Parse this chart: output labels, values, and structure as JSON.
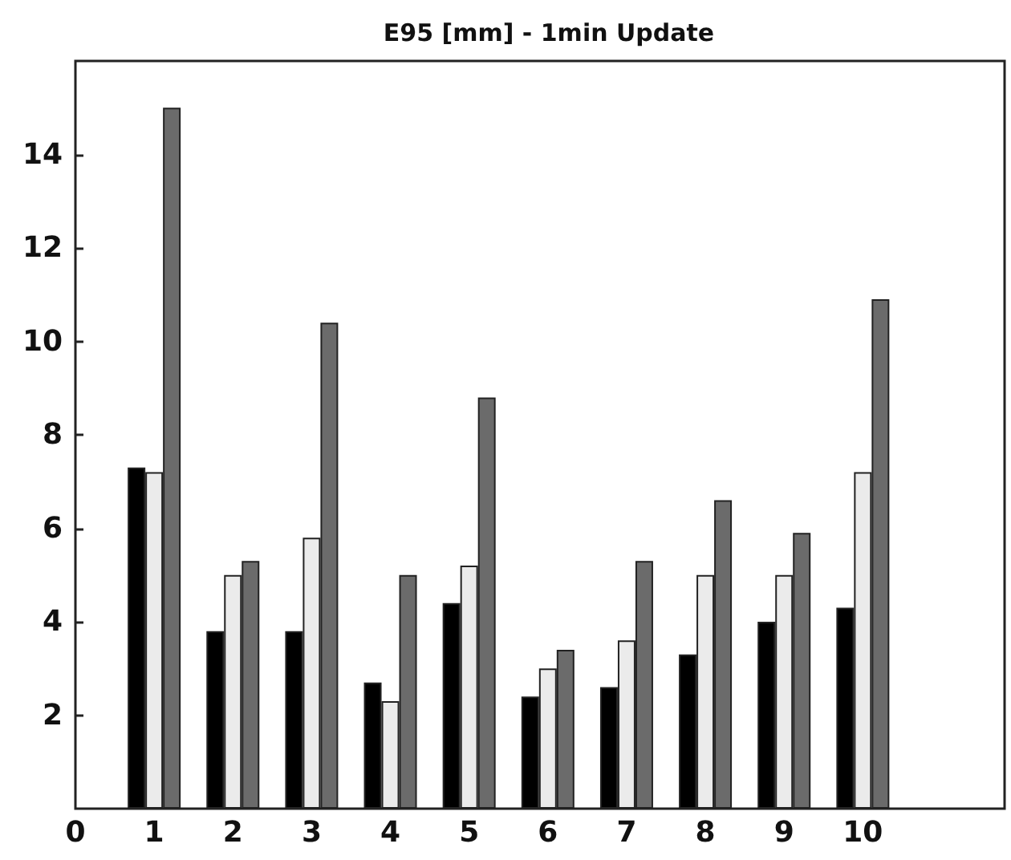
{
  "chart_data": {
    "type": "bar",
    "title": "E95 [mm] - 1min Update",
    "x": [
      1,
      2,
      3,
      4,
      5,
      6,
      7,
      8,
      9,
      10
    ],
    "series": [
      {
        "color": "#000000",
        "values": [
          7.3,
          3.8,
          3.8,
          2.7,
          4.4,
          2.4,
          2.6,
          3.3,
          4.0,
          4.3
        ]
      },
      {
        "color": "#ebebeb",
        "values": [
          7.2,
          5.0,
          5.8,
          2.3,
          5.2,
          3.0,
          3.6,
          5.0,
          5.0,
          7.2
        ]
      },
      {
        "color": "#6b6b6b",
        "values": [
          15.0,
          5.3,
          10.4,
          5.0,
          8.8,
          3.4,
          5.3,
          6.6,
          5.9,
          10.9
        ]
      }
    ],
    "xlim": [
      0,
      11.8
    ],
    "xticks": [
      0,
      1,
      2,
      3,
      4,
      5,
      6,
      7,
      8,
      9,
      10
    ],
    "ylim": [
      0,
      16
    ],
    "yticks": [
      2,
      4,
      6,
      8,
      10,
      12,
      14
    ],
    "grid": false
  }
}
